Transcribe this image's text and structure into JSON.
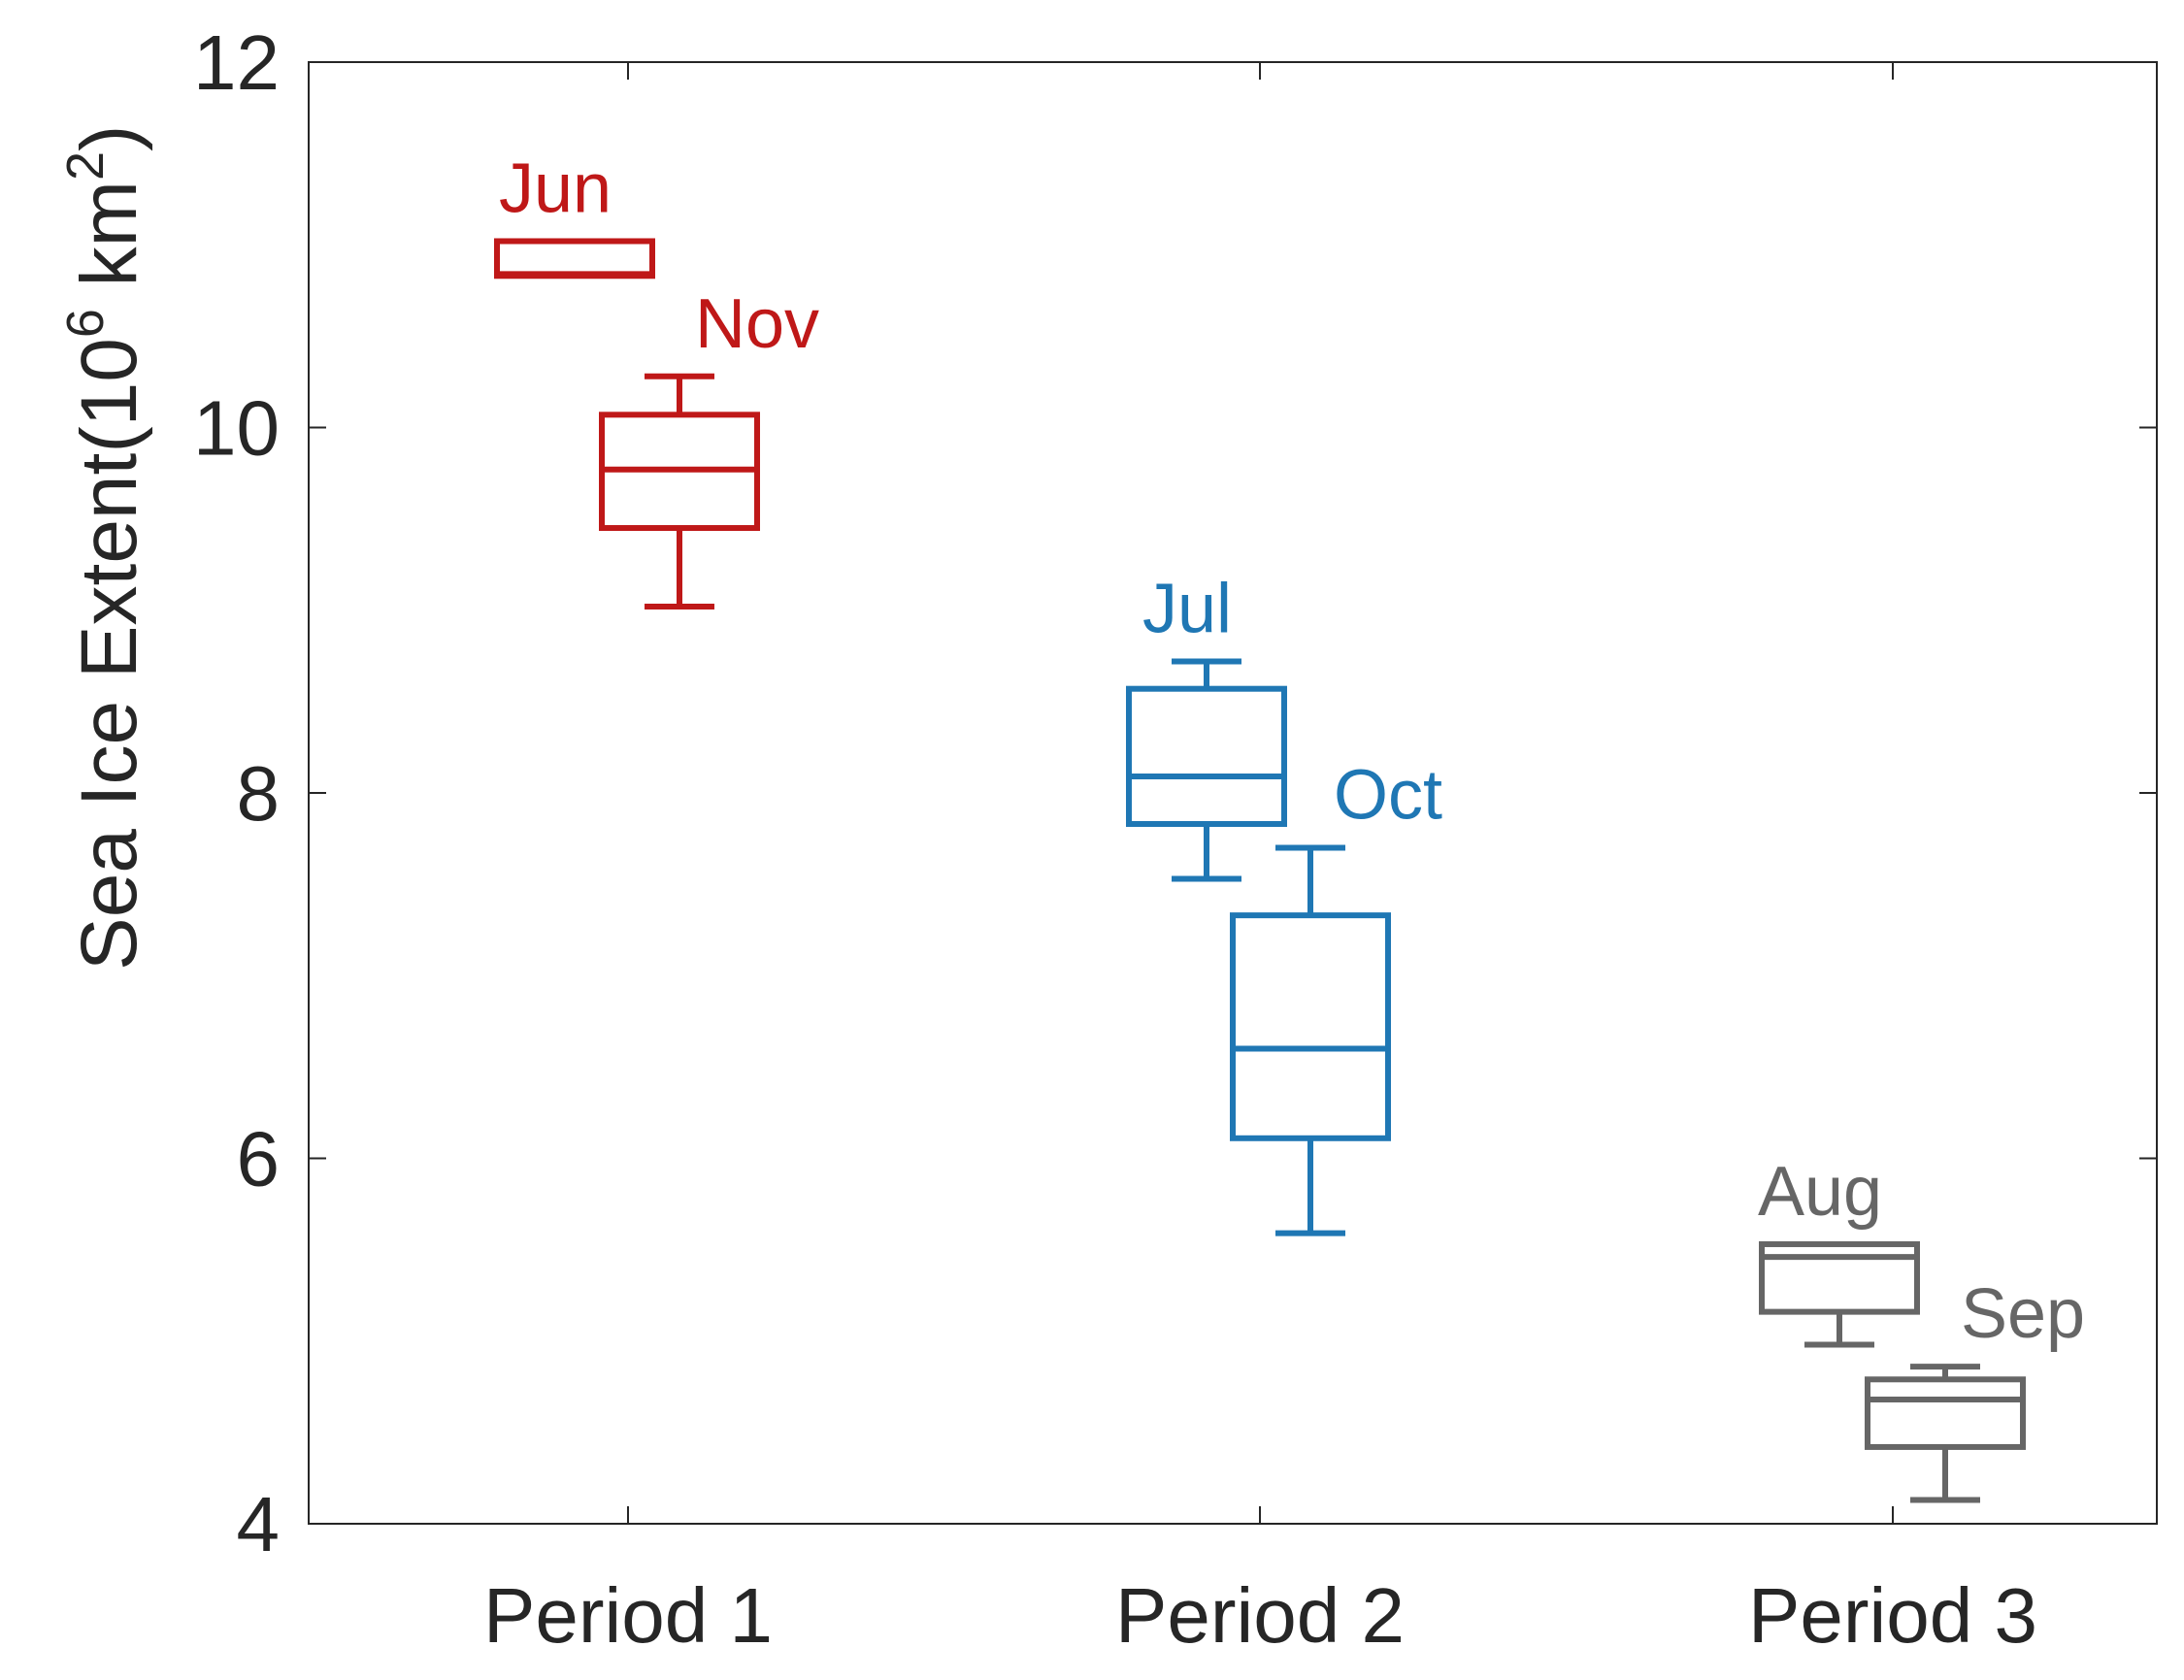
{
  "chart_data": {
    "type": "box",
    "title": "",
    "xlabel": "",
    "ylabel": "Sea Ice Extent(10",
    "ylabel_sup1": "6",
    "ylabel_mid": " km",
    "ylabel_sup2": "2",
    "ylabel_end": ")",
    "ylim": [
      4,
      12
    ],
    "yticks": [
      "4",
      "6",
      "8",
      "10",
      "12"
    ],
    "categories": [
      "Period 1",
      "Period 2",
      "Period 3"
    ],
    "grid": false,
    "colors": {
      "Period 1": "#bf1818",
      "Period 2": "#1f77b4",
      "Period 3": "#666666",
      "axis": "#262626"
    },
    "boxes": [
      {
        "label": "Jun",
        "period": "Period 1",
        "whisker_low": 10.83,
        "q1": 10.83,
        "median": 10.84,
        "q3": 11.02,
        "whisker_high": 11.02
      },
      {
        "label": "Nov",
        "period": "Period 1",
        "whisker_low": 9.02,
        "q1": 9.45,
        "median": 9.77,
        "q3": 10.07,
        "whisker_high": 10.28
      },
      {
        "label": "Jul",
        "period": "Period 2",
        "whisker_low": 7.53,
        "q1": 7.83,
        "median": 8.09,
        "q3": 8.57,
        "whisker_high": 8.72
      },
      {
        "label": "Oct",
        "period": "Period 2",
        "whisker_low": 5.59,
        "q1": 6.11,
        "median": 6.6,
        "q3": 7.33,
        "whisker_high": 7.7
      },
      {
        "label": "Aug",
        "period": "Period 3",
        "whisker_low": 4.98,
        "q1": 5.16,
        "median": 5.46,
        "q3": 5.53,
        "whisker_high": 5.53
      },
      {
        "label": "Sep",
        "period": "Period 3",
        "whisker_low": 4.13,
        "q1": 4.42,
        "median": 4.68,
        "q3": 4.79,
        "whisker_high": 4.86
      }
    ]
  }
}
